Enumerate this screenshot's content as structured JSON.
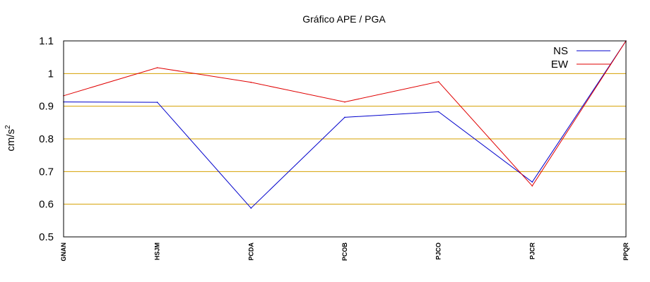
{
  "chart_data": {
    "type": "line",
    "title": "Gráfico  APE / PGA",
    "ylabel": "cm/s",
    "ylabel_superscript": "2",
    "xlabel": "",
    "categories": [
      "GNAN",
      "HSJM",
      "PCDA",
      "PCOB",
      "PJCO",
      "PJCR",
      "PPQR"
    ],
    "series": [
      {
        "name": "NS",
        "color": "#0000cc",
        "values": [
          0.913,
          0.912,
          0.588,
          0.866,
          0.883,
          0.668,
          1.1
        ]
      },
      {
        "name": "EW",
        "color": "#e00000",
        "values": [
          0.932,
          1.018,
          0.973,
          0.913,
          0.975,
          0.656,
          1.1
        ]
      }
    ],
    "ylim": [
      0.5,
      1.1
    ],
    "yticks": [
      "0.5",
      "0.6",
      "0.7",
      "0.8",
      "0.9",
      "1",
      "1.1"
    ],
    "grid": true,
    "grid_color": "#d4a000",
    "legend_position": "top-right"
  }
}
